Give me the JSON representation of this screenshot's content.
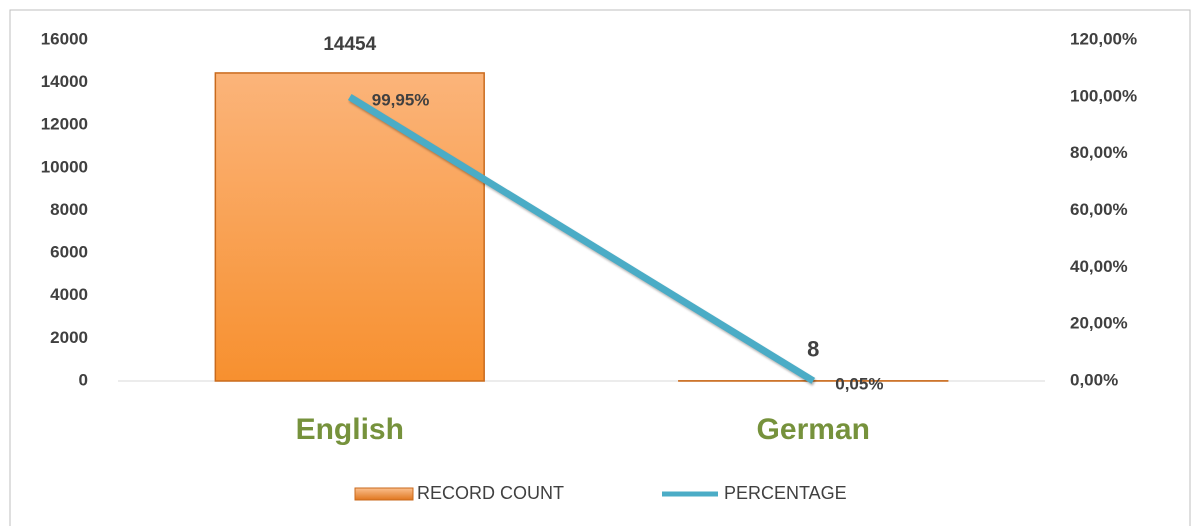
{
  "chart_data": {
    "type": "bar",
    "categories": [
      "English",
      "German"
    ],
    "series": [
      {
        "name": "RECORD COUNT",
        "color": "#f79646",
        "values": [
          14454,
          8
        ]
      },
      {
        "name": "PERCENTAGE",
        "type": "line",
        "axis": "y2",
        "color": "#4bacc6",
        "values": [
          99.95,
          0.05
        ],
        "value_labels": [
          "99,95%",
          "0,05%"
        ]
      }
    ],
    "ylim": [
      0,
      16000
    ],
    "yticks": [
      0,
      2000,
      4000,
      6000,
      8000,
      10000,
      12000,
      14000,
      16000
    ],
    "y2lim": [
      0,
      120
    ],
    "y2ticks": [
      {
        "value": 0,
        "label": "0,00%"
      },
      {
        "value": 20,
        "label": "20,00%"
      },
      {
        "value": 40,
        "label": "40,00%"
      },
      {
        "value": 60,
        "label": "60,00%"
      },
      {
        "value": 80,
        "label": "80,00%"
      },
      {
        "value": 100,
        "label": "100,00%"
      },
      {
        "value": 120,
        "label": "120,00%"
      }
    ],
    "legend": "bottom"
  }
}
